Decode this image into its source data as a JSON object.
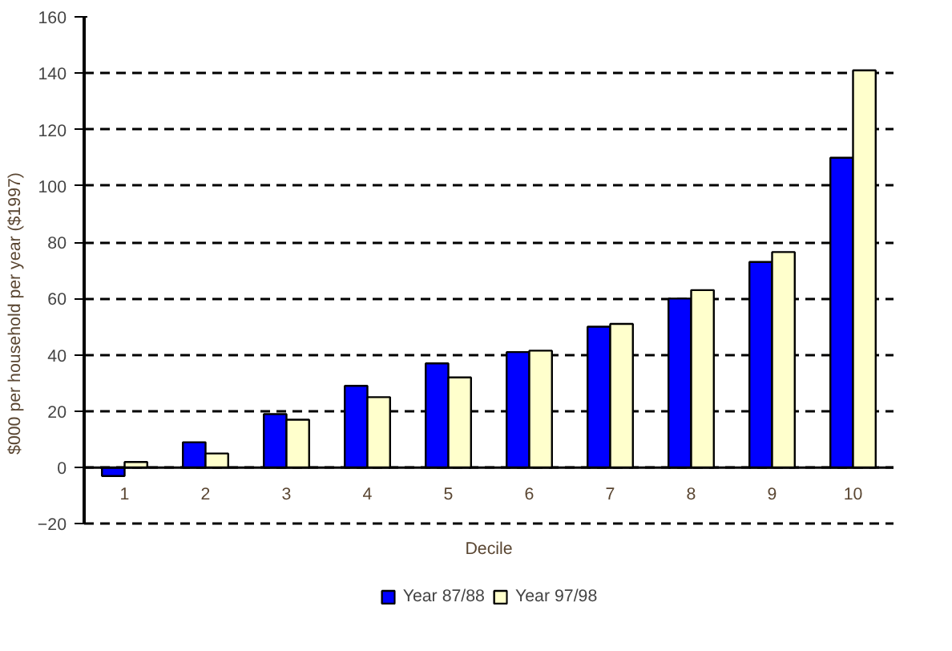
{
  "chart_data": {
    "type": "bar",
    "xlabel": "Decile",
    "ylabel": "$000 per household per year ($1997)",
    "categories": [
      "1",
      "2",
      "3",
      "4",
      "5",
      "6",
      "7",
      "8",
      "9",
      "10"
    ],
    "series": [
      {
        "name": "Year 87/88",
        "color": "#0000ff",
        "values": [
          -3,
          9,
          19,
          29,
          37,
          41,
          50,
          60,
          73,
          110
        ]
      },
      {
        "name": "Year 97/98",
        "color": "#ffffcc",
        "values": [
          2,
          5,
          17,
          25,
          32,
          41.5,
          51,
          63,
          76.5,
          141
        ]
      }
    ],
    "ylim": [
      -20,
      160
    ],
    "yticks": [
      -20,
      0,
      20,
      40,
      60,
      80,
      100,
      120,
      140,
      160
    ],
    "grid": "y",
    "legend": "bottom",
    "line_style": "dashed"
  }
}
